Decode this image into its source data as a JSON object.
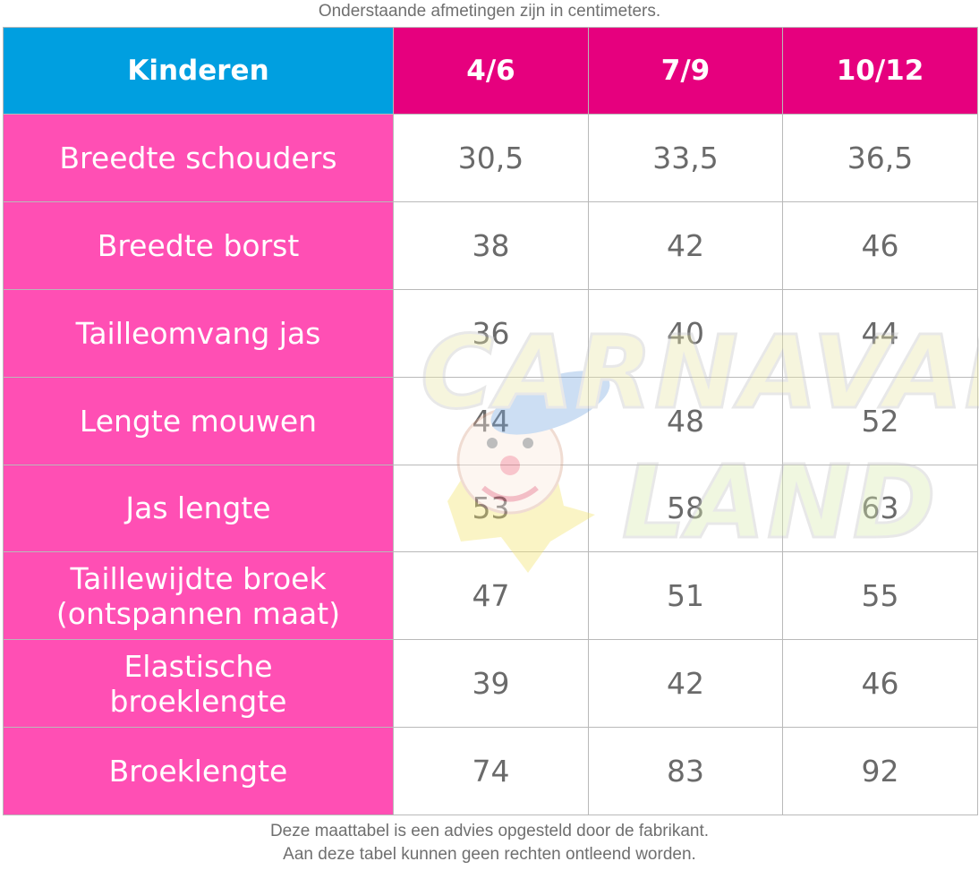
{
  "top_note": "Onderstaande afmetingen zijn in centimeters.",
  "header": {
    "label": "Kinderen",
    "sizes": [
      "4/6",
      "7/9",
      "10/12"
    ]
  },
  "rows": [
    {
      "label": "Breedte schouders",
      "values": [
        "30,5",
        "33,5",
        "36,5"
      ]
    },
    {
      "label": "Breedte borst",
      "values": [
        "38",
        "42",
        "46"
      ]
    },
    {
      "label": "Tailleomvang jas",
      "values": [
        "36",
        "40",
        "44"
      ]
    },
    {
      "label": "Lengte mouwen",
      "values": [
        "44",
        "48",
        "52"
      ]
    },
    {
      "label": "Jas lengte",
      "values": [
        "53",
        "58",
        "63"
      ]
    },
    {
      "label_line1": "Taillewijdte broek",
      "label_line2": "(ontspannen maat)",
      "values": [
        "47",
        "51",
        "55"
      ]
    },
    {
      "label_line1": "Elastische",
      "label_line2": "broeklengte",
      "values": [
        "39",
        "42",
        "46"
      ]
    },
    {
      "label": "Broeklengte",
      "values": [
        "74",
        "83",
        "92"
      ]
    }
  ],
  "watermark": {
    "line1": "CARNAVALS",
    "line2": "LAND"
  },
  "bottom_note": {
    "line1": "Deze maattabel is een advies opgesteld door de fabrikant.",
    "line2": "Aan deze tabel kunnen geen rechten ontleend worden."
  },
  "colors": {
    "header_label_bg": "#009fe0",
    "header_size_bg": "#e6007e",
    "row_label_bg": "#ff4fb4",
    "value_text": "#6a6a6a"
  }
}
